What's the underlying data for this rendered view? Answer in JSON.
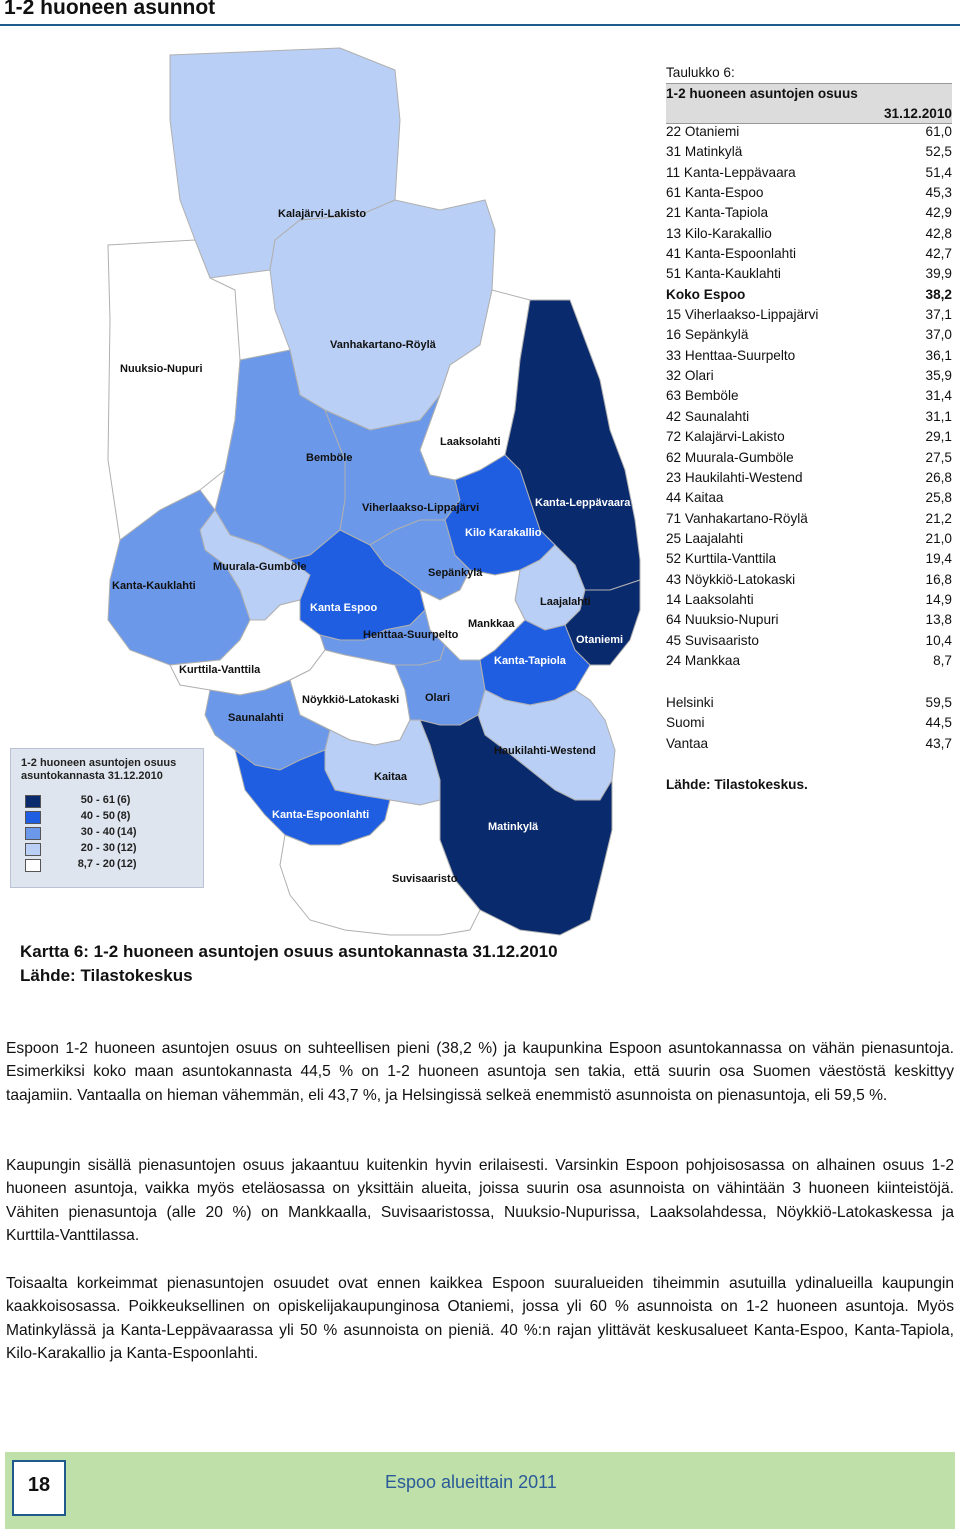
{
  "page": {
    "title": "1-2 huoneen asunnot",
    "page_number": "18",
    "footer_text": "Espoo alueittain 2011"
  },
  "colors": {
    "c50_61": "#0a2a6e",
    "c40_50": "#1f5ee0",
    "c30_40": "#6b98e8",
    "c20_30": "#b9cff5",
    "c8_20": "#ffffff",
    "border": "#b0b0b0"
  },
  "map": {
    "regions": {
      "kalajarvi": "Kalajärvi-Lakisto",
      "nuuksio": "Nuuksio-Nupuri",
      "vanhakartano": "Vanhakartano-Röylä",
      "laaksolahti": "Laaksolahti",
      "bemboele": "Bemböle",
      "viherlaakso": "Viherlaakso-Lippajärvi",
      "kanta_leppavaara": "Kanta-Leppävaara",
      "kilo": "Kilo Karakallio",
      "muurala": "Muurala-Gumböle",
      "kanta_kauklahti": "Kanta-Kauklahti",
      "sepankyla": "Sepänkylä",
      "kanta_espoo": "Kanta Espoo",
      "laajalahti": "Laajalahti",
      "mankkaa": "Mankkaa",
      "otaniemi": "Otaniemi",
      "henttaa": "Henttaa-Suurpelto",
      "kanta_tapiola": "Kanta-Tapiola",
      "kurttila": "Kurttila-Vanttila",
      "noykkio": "Nöykkiö-Latokaski",
      "olari": "Olari",
      "saunalahti": "Saunalahti",
      "haukilahti": "Haukilahti-Westend",
      "kaitaa": "Kaitaa",
      "kanta_espoonlahti": "Kanta-Espoonlahti",
      "matinkyla": "Matinkylä",
      "suvisaaristo": "Suvisaaristo"
    },
    "legend": {
      "title_line1": "1-2 huoneen asuntojen osuus",
      "title_line2": "asuntokannasta 31.12.2010",
      "items": [
        {
          "range": "50  - 61",
          "count": "(6)"
        },
        {
          "range": "40  - 50",
          "count": "(8)"
        },
        {
          "range": "30  - 40",
          "count": "(14)"
        },
        {
          "range": "20  - 30",
          "count": "(12)"
        },
        {
          "range": "8,7 - 20",
          "count": "(12)"
        }
      ]
    }
  },
  "table": {
    "caption_line1": "Taulukko 6:",
    "caption_line2": "1-2 huoneen asuntojen osuus",
    "caption_line3": "31.12.2010",
    "rows": [
      {
        "name": "22 Otaniemi",
        "value": "61,0"
      },
      {
        "name": "31 Matinkylä",
        "value": "52,5"
      },
      {
        "name": "11 Kanta-Leppävaara",
        "value": "51,4"
      },
      {
        "name": "61 Kanta-Espoo",
        "value": "45,3"
      },
      {
        "name": "21 Kanta-Tapiola",
        "value": "42,9"
      },
      {
        "name": "13 Kilo-Karakallio",
        "value": "42,8"
      },
      {
        "name": "41 Kanta-Espoonlahti",
        "value": "42,7"
      },
      {
        "name": "51 Kanta-Kauklahti",
        "value": "39,9"
      },
      {
        "name": "Koko Espoo",
        "value": "38,2"
      },
      {
        "name": "15 Viherlaakso-Lippajärvi",
        "value": "37,1"
      },
      {
        "name": "16 Sepänkylä",
        "value": "37,0"
      },
      {
        "name": "33 Henttaa-Suurpelto",
        "value": "36,1"
      },
      {
        "name": "32 Olari",
        "value": "35,9"
      },
      {
        "name": "63 Bemböle",
        "value": "31,4"
      },
      {
        "name": "42 Saunalahti",
        "value": "31,1"
      },
      {
        "name": "72 Kalajärvi-Lakisto",
        "value": "29,1"
      },
      {
        "name": "62 Muurala-Gumböle",
        "value": "27,5"
      },
      {
        "name": "23 Haukilahti-Westend",
        "value": "26,8"
      },
      {
        "name": "44 Kaitaa",
        "value": "25,8"
      },
      {
        "name": "71 Vanhakartano-Röylä",
        "value": "21,2"
      },
      {
        "name": "25 Laajalahti",
        "value": "21,0"
      },
      {
        "name": "52 Kurttila-Vanttila",
        "value": "19,4"
      },
      {
        "name": "43 Nöykkiö-Latokaski",
        "value": "16,8"
      },
      {
        "name": "14 Laaksolahti",
        "value": "14,9"
      },
      {
        "name": "64 Nuuksio-Nupuri",
        "value": "13,8"
      },
      {
        "name": "45 Suvisaaristo",
        "value": "10,4"
      },
      {
        "name": "24 Mankkaa",
        "value": "8,7"
      }
    ],
    "comparison": [
      {
        "name": "Helsinki",
        "value": "59,5"
      },
      {
        "name": "Suomi",
        "value": "44,5"
      },
      {
        "name": "Vantaa",
        "value": "43,7"
      }
    ],
    "source": "Lähde: Tilastokeskus."
  },
  "map_caption": {
    "line1": "Kartta 6: 1-2 huoneen asuntojen osuus asuntokannasta 31.12.2010",
    "line2": "Lähde: Tilastokeskus"
  },
  "paragraphs": [
    "Espoon 1-2 huoneen asuntojen osuus on suhteellisen pieni (38,2 %) ja kaupunkina Espoon asuntokannassa on vähän pienasuntoja. Esimerkiksi koko maan asuntokannasta 44,5 % on 1-2 huoneen asuntoja sen takia, että suurin osa Suomen väestöstä keskittyy taajamiin. Vantaalla on hieman vähemmän, eli 43,7 %, ja Helsingissä selkeä enemmistö asunnoista on pienasuntoja, eli 59,5 %.",
    "Kaupungin sisällä pienasuntojen osuus jakaantuu kuitenkin hyvin erilaisesti. Varsinkin Espoon pohjoisosassa on alhainen osuus 1-2 huoneen asuntoja, vaikka myös eteläosassa on yksittäin alueita, joissa suurin osa asunnoista on vähintään 3 huoneen kiinteistöjä. Vähiten pienasuntoja (alle 20 %) on Mankkaalla, Suvisaaristossa, Nuuksio-Nupurissa, Laaksolahdessa, Nöykkiö-Latokaskessa ja Kurttila-Vanttilassa.",
    "Toisaalta korkeimmat pienasuntojen osuudet ovat ennen kaikkea Espoon suuralueiden tiheimmin asutuilla ydinalueilla kaupungin kaakkoisosassa. Poikkeuksellinen on opiskelijakaupunginosa Otaniemi, jossa yli 60 % asunnoista on 1-2 huoneen asuntoja. Myös Matinkylässä ja Kanta-Leppävaarassa yli 50 % asunnoista on pieniä. 40 %:n rajan ylittävät keskusalueet Kanta-Espoo, Kanta-Tapiola, Kilo-Karakallio ja Kanta-Espoonlahti."
  ]
}
